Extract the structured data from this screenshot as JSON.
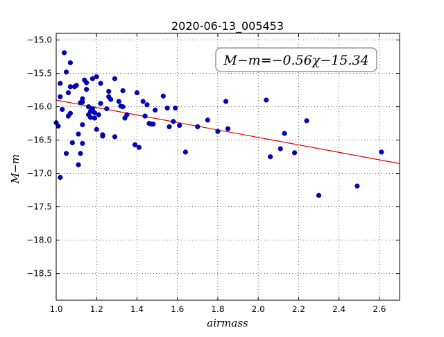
{
  "chart_data": {
    "type": "scatter",
    "title": "2020-06-13_005453",
    "xlabel": "airmass",
    "ylabel": "M−m",
    "xlim": [
      1.0,
      2.7
    ],
    "ylim": [
      -18.9,
      -14.9
    ],
    "y_inverted": true,
    "grid": true,
    "xticks": [
      1.0,
      1.2,
      1.4,
      1.6,
      1.8,
      2.0,
      2.2,
      2.4,
      2.6
    ],
    "xtick_labels": [
      "1.0",
      "1.2",
      "1.4",
      "1.6",
      "1.8",
      "2.0",
      "2.2",
      "2.4",
      "2.6"
    ],
    "yticks": [
      -15.0,
      -15.5,
      -16.0,
      -16.5,
      -17.0,
      -17.5,
      -18.0,
      -18.5
    ],
    "ytick_labels": [
      "−15.0",
      "−15.5",
      "−16.0",
      "−16.5",
      "−17.0",
      "−17.5",
      "−18.0",
      "−18.5"
    ],
    "annotation": "M−m=−0.56χ−15.34",
    "fit": {
      "slope": -0.56,
      "intercept": -15.34,
      "color": "#dd0000"
    },
    "point_color": "#0000cc",
    "series": [
      {
        "points": [
          [
            1.0,
            -16.24
          ],
          [
            1.01,
            -16.29
          ],
          [
            1.02,
            -15.65
          ],
          [
            1.02,
            -15.85
          ],
          [
            1.03,
            -16.04
          ],
          [
            1.02,
            -17.06
          ],
          [
            1.04,
            -15.19
          ],
          [
            1.05,
            -15.48
          ],
          [
            1.05,
            -16.7
          ],
          [
            1.06,
            -15.79
          ],
          [
            1.06,
            -16.14
          ],
          [
            1.07,
            -15.34
          ],
          [
            1.07,
            -16.1
          ],
          [
            1.07,
            -15.7
          ],
          [
            1.08,
            -16.54
          ],
          [
            1.09,
            -15.7
          ],
          [
            1.1,
            -15.68
          ],
          [
            1.11,
            -16.41
          ],
          [
            1.11,
            -16.87
          ],
          [
            1.12,
            -15.94
          ],
          [
            1.12,
            -16.7
          ],
          [
            1.13,
            -15.93
          ],
          [
            1.13,
            -15.88
          ],
          [
            1.13,
            -16.55
          ],
          [
            1.13,
            -16.27
          ],
          [
            1.14,
            -15.6
          ],
          [
            1.15,
            -15.64
          ],
          [
            1.15,
            -15.74
          ],
          [
            1.16,
            -16.0
          ],
          [
            1.16,
            -16.12
          ],
          [
            1.17,
            -16.16
          ],
          [
            1.17,
            -16.07
          ],
          [
            1.18,
            -15.58
          ],
          [
            1.18,
            -16.03
          ],
          [
            1.19,
            -16.09
          ],
          [
            1.19,
            -16.17
          ],
          [
            1.2,
            -15.55
          ],
          [
            1.2,
            -16.34
          ],
          [
            1.21,
            -16.12
          ],
          [
            1.22,
            -15.95
          ],
          [
            1.22,
            -15.65
          ],
          [
            1.23,
            -16.42
          ],
          [
            1.23,
            -16.44
          ],
          [
            1.25,
            -16.03
          ],
          [
            1.26,
            -15.77
          ],
          [
            1.26,
            -15.85
          ],
          [
            1.27,
            -15.89
          ],
          [
            1.29,
            -15.58
          ],
          [
            1.29,
            -16.45
          ],
          [
            1.31,
            -15.92
          ],
          [
            1.32,
            -15.99
          ],
          [
            1.33,
            -16.0
          ],
          [
            1.33,
            -15.76
          ],
          [
            1.34,
            -16.17
          ],
          [
            1.35,
            -16.12
          ],
          [
            1.39,
            -16.57
          ],
          [
            1.4,
            -15.79
          ],
          [
            1.41,
            -16.61
          ],
          [
            1.43,
            -15.92
          ],
          [
            1.44,
            -16.14
          ],
          [
            1.45,
            -15.97
          ],
          [
            1.46,
            -16.25
          ],
          [
            1.47,
            -16.26
          ],
          [
            1.48,
            -16.26
          ],
          [
            1.49,
            -16.05
          ],
          [
            1.53,
            -15.84
          ],
          [
            1.55,
            -16.02
          ],
          [
            1.56,
            -16.3
          ],
          [
            1.58,
            -16.22
          ],
          [
            1.59,
            -16.02
          ],
          [
            1.61,
            -16.28
          ],
          [
            1.64,
            -16.68
          ],
          [
            1.7,
            -16.3
          ],
          [
            1.75,
            -16.2
          ],
          [
            1.8,
            -16.37
          ],
          [
            1.84,
            -15.92
          ],
          [
            1.85,
            -16.33
          ],
          [
            2.04,
            -15.9
          ],
          [
            2.06,
            -16.75
          ],
          [
            2.11,
            -16.63
          ],
          [
            2.13,
            -16.4
          ],
          [
            2.18,
            -16.69
          ],
          [
            2.24,
            -16.21
          ],
          [
            2.3,
            -17.33
          ],
          [
            2.49,
            -17.19
          ],
          [
            2.61,
            -16.68
          ]
        ]
      }
    ]
  }
}
